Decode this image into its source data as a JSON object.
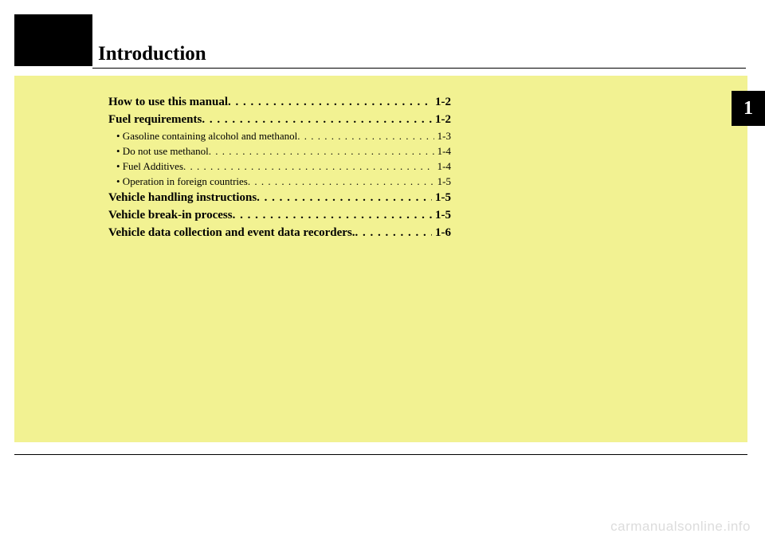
{
  "colors": {
    "page_bg": "#ffffff",
    "black": "#000000",
    "yellow_block": "#f2f292",
    "watermark": "#dcdcdc"
  },
  "chapter": {
    "title": "Introduction",
    "number": "1"
  },
  "toc": [
    {
      "level": "main",
      "label": "How to use this manual",
      "page": "1-2"
    },
    {
      "level": "main",
      "label": "Fuel requirements",
      "page": "1-2"
    },
    {
      "level": "sub",
      "label": "• Gasoline containing alcohol and methanol",
      "page": "1-3"
    },
    {
      "level": "sub",
      "label": "• Do not use methanol",
      "page": "1-4"
    },
    {
      "level": "sub",
      "label": "• Fuel Additives",
      "page": "1-4"
    },
    {
      "level": "sub",
      "label": "• Operation in foreign countries",
      "page": "1-5"
    },
    {
      "level": "main",
      "label": "Vehicle handling instructions",
      "page": "1-5"
    },
    {
      "level": "main",
      "label": "Vehicle break-in process",
      "page": "1-5"
    },
    {
      "level": "main",
      "label": "Vehicle data collection and event data recorders.",
      "page": "1-6"
    }
  ],
  "watermark": "carmanualsonline.info"
}
